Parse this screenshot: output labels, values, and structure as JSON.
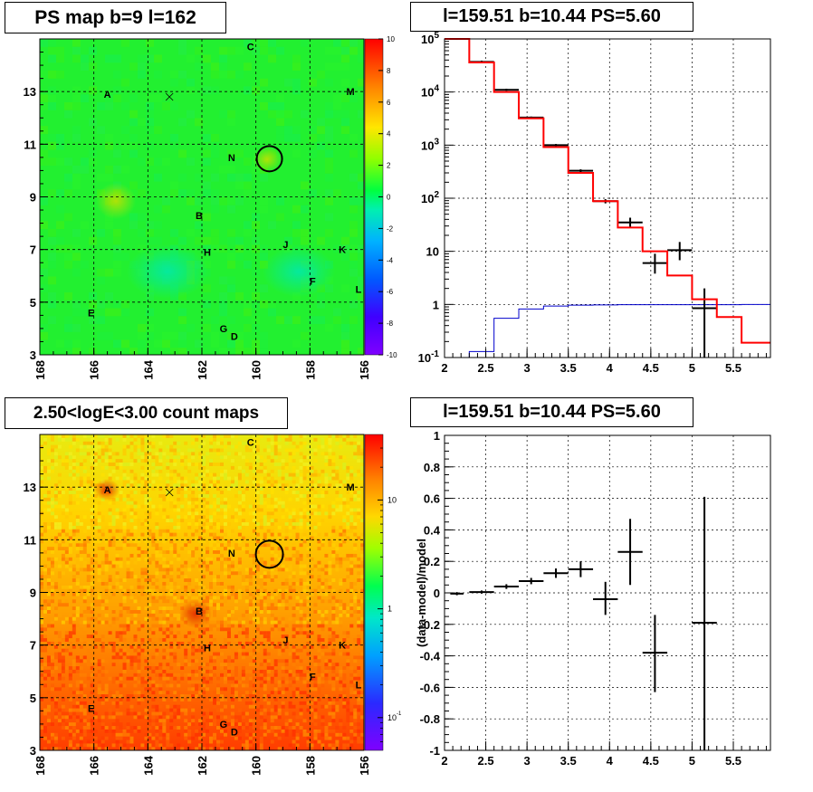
{
  "panels": {
    "tl_title": "PS map b=9 l=162",
    "tr_title": "l=159.51 b=10.44 PS=5.60",
    "bl_title": "2.50<logE<3.00 count maps",
    "br_title": "l=159.51 b=10.44 PS=5.60"
  },
  "colors": {
    "black": "#000000",
    "red": "#ff0000",
    "blue": "#0000cc"
  },
  "chart_data": [
    {
      "type": "heatmap",
      "id": "ps_map",
      "title": "PS map b=9 l=162",
      "xlim": [
        168,
        156
      ],
      "ylim": [
        3,
        15
      ],
      "x_ticks": [
        "168",
        "166",
        "164",
        "162",
        "160",
        "158",
        "156"
      ],
      "y_ticks": [
        "3",
        "5",
        "7",
        "9",
        "11",
        "13"
      ],
      "colorbar": {
        "scale": "linear",
        "range": [
          -10,
          10
        ],
        "ticks": [
          "10",
          "8",
          "6",
          "4",
          "2",
          "0",
          "-2",
          "-4",
          "-6",
          "-8",
          "-10"
        ]
      },
      "grid": true,
      "source_labels": [
        {
          "label": "A",
          "l": 165.5,
          "b": 12.9
        },
        {
          "label": "B",
          "l": 162.1,
          "b": 8.3
        },
        {
          "label": "C",
          "l": 160.2,
          "b": 14.7
        },
        {
          "label": "D",
          "l": 160.8,
          "b": 3.7
        },
        {
          "label": "E",
          "l": 166.1,
          "b": 4.6
        },
        {
          "label": "F",
          "l": 157.9,
          "b": 5.8
        },
        {
          "label": "G",
          "l": 161.2,
          "b": 4.0
        },
        {
          "label": "H",
          "l": 161.8,
          "b": 6.9
        },
        {
          "label": "J",
          "l": 158.9,
          "b": 7.2
        },
        {
          "label": "K",
          "l": 156.8,
          "b": 7.0
        },
        {
          "label": "L",
          "l": 156.2,
          "b": 5.5
        },
        {
          "label": "M",
          "l": 156.5,
          "b": 13.0
        },
        {
          "label": "N",
          "l": 160.9,
          "b": 10.5
        }
      ],
      "marker_x": {
        "l": 163.2,
        "b": 12.8
      },
      "circle": {
        "l": 159.5,
        "b": 10.45
      }
    },
    {
      "type": "line",
      "id": "spectrum",
      "title": "l=159.51 b=10.44 PS=5.60",
      "xlim": [
        2.0,
        5.95
      ],
      "ylim": [
        0.1,
        100000
      ],
      "y_scale": "log",
      "x_ticks": [
        "2",
        "2.5",
        "3",
        "3.5",
        "4",
        "4.5",
        "5",
        "5.5"
      ],
      "y_ticks": [
        "10^-1",
        "1",
        "10",
        "10^2",
        "10^3",
        "10^4",
        "10^5"
      ],
      "grid": true,
      "bin_edges": [
        2.0,
        2.3,
        2.6,
        2.9,
        3.2,
        3.5,
        3.8,
        4.1,
        4.4,
        4.7,
        5.0,
        5.3,
        5.6,
        5.95
      ],
      "series": [
        {
          "role": "model",
          "values": [
            100000,
            36000,
            10000,
            3200,
            920,
            300,
            88,
            28,
            10,
            3.5,
            1.25,
            0.58,
            0.19
          ]
        },
        {
          "role": "ps",
          "values": [
            0.095,
            0.13,
            0.55,
            0.82,
            0.93,
            0.97,
            0.98,
            0.99,
            0.99,
            0.99,
            0.99,
            0.99,
            1.0
          ]
        },
        {
          "role": "data",
          "x": [
            2.15,
            2.45,
            2.75,
            3.05,
            3.35,
            3.65,
            3.95,
            4.25,
            4.55,
            4.85,
            5.15
          ],
          "y": [
            100000,
            37000,
            11000,
            3300,
            1000,
            330,
            88,
            35,
            6.0,
            10.5,
            0.85
          ],
          "ylow": [
            96000,
            35000,
            10500,
            3150,
            950,
            310,
            80,
            29,
            3.8,
            6.8,
            0.08
          ],
          "yhigh": [
            104000,
            39000,
            11500,
            3450,
            1050,
            350,
            96,
            43,
            9.0,
            15.0,
            2.0
          ]
        }
      ]
    },
    {
      "type": "heatmap",
      "id": "count_map",
      "title": "2.50<logE<3.00 count maps",
      "xlim": [
        168,
        156
      ],
      "ylim": [
        3,
        15
      ],
      "x_ticks": [
        "168",
        "166",
        "164",
        "162",
        "160",
        "158",
        "156"
      ],
      "y_ticks": [
        "3",
        "5",
        "7",
        "9",
        "11",
        "13"
      ],
      "colorbar": {
        "scale": "log",
        "range": [
          0.05,
          40
        ],
        "ticks": [
          "10",
          "1",
          "10^-1"
        ]
      },
      "grid": true
    },
    {
      "type": "scatter",
      "id": "residuals",
      "title": "l=159.51 b=10.44 PS=5.60",
      "ylabel": "(data-model)/model",
      "xlim": [
        2.0,
        5.95
      ],
      "ylim": [
        -1,
        1
      ],
      "x_ticks": [
        "2",
        "2.5",
        "3",
        "3.5",
        "4",
        "4.5",
        "5",
        "5.5"
      ],
      "y_ticks": [
        "1",
        "0.8",
        "0.6",
        "0.4",
        "0.2",
        "0",
        "-0.2",
        "-0.4",
        "-0.6",
        "-0.8",
        "-1"
      ],
      "grid": true,
      "series": [
        {
          "x": [
            2.15,
            2.45,
            2.75,
            3.05,
            3.35,
            3.65,
            3.95,
            4.25,
            4.55,
            5.15
          ],
          "y": [
            -0.005,
            0.005,
            0.04,
            0.075,
            0.125,
            0.15,
            -0.04,
            0.26,
            -0.38,
            -0.19
          ],
          "ylow": [
            -0.015,
            -0.005,
            0.025,
            0.055,
            0.095,
            0.1,
            -0.14,
            0.05,
            -0.63,
            -1.0
          ],
          "yhigh": [
            0.005,
            0.015,
            0.055,
            0.095,
            0.155,
            0.2,
            0.07,
            0.47,
            -0.14,
            0.61
          ],
          "xerr": [
            0.08,
            0.15,
            0.15,
            0.15,
            0.15,
            0.15,
            0.15,
            0.15,
            0.15,
            0.15
          ]
        }
      ]
    }
  ]
}
